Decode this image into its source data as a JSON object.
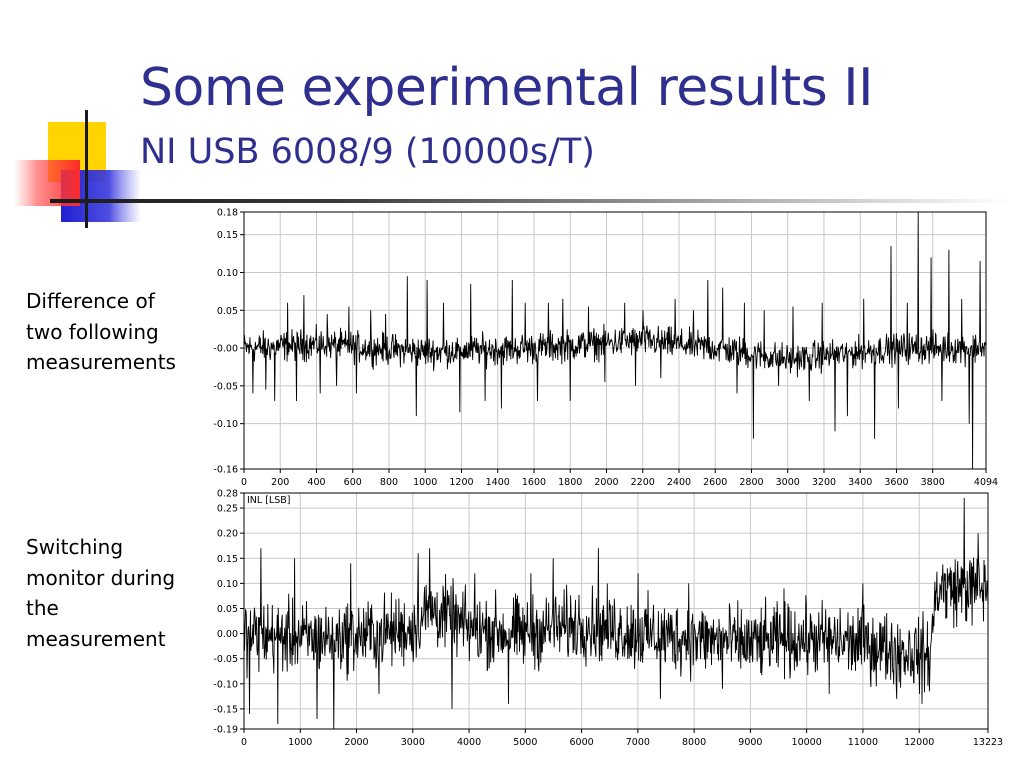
{
  "slide": {
    "title": "Some experimental results II",
    "subtitle": "NI USB 6008/9 (10000s/T)",
    "caption_top": [
      "Difference of",
      "two following",
      "measurements"
    ],
    "caption_bottom": [
      "Switching",
      "monitor during",
      "the",
      "measurement"
    ]
  },
  "colors": {
    "title": "#2f2f8f",
    "deco_yellow": "#ffd400",
    "deco_red": "#ff3b3b",
    "deco_blue": "#2b2bd9",
    "trace": "#000000",
    "grid": "#c8c8c8"
  },
  "chart_data": [
    {
      "type": "line",
      "title": "",
      "xlabel": "",
      "ylabel": "",
      "xlim": [
        0,
        4094
      ],
      "ylim": [
        -0.16,
        0.18
      ],
      "x_ticks": [
        0,
        200,
        400,
        600,
        800,
        1000,
        1200,
        1400,
        1600,
        1800,
        2000,
        2200,
        2400,
        2600,
        2800,
        3000,
        3200,
        3400,
        3600,
        3800,
        4094
      ],
      "x_tick_labels": [
        "0",
        "200",
        "400",
        "600",
        "800",
        "1000",
        "1200",
        "1400",
        "1600",
        "1800",
        "2000",
        "2200",
        "2400",
        "2600",
        "2800",
        "3000",
        "3200",
        "3400",
        "3600",
        "3800",
        "4094"
      ],
      "y_ticks": [
        -0.16,
        -0.1,
        -0.05,
        0.0,
        0.05,
        0.1,
        0.15,
        0.18
      ],
      "y_tick_labels": [
        "-0.16",
        "-0.10",
        "-0.05",
        "-0.00",
        "0.05",
        "0.10",
        "0.15",
        "0.18"
      ],
      "grid": true,
      "legend": "none",
      "series": [
        {
          "noise_amplitude": 0.02,
          "baseline": [
            [
              0,
              0.0
            ],
            [
              400,
              0.005
            ],
            [
              1000,
              -0.005
            ],
            [
              1600,
              0.0
            ],
            [
              2200,
              0.01
            ],
            [
              2600,
              0.0
            ],
            [
              3000,
              -0.015
            ],
            [
              3600,
              0.0
            ],
            [
              4094,
              0.0
            ]
          ],
          "spikes": [
            [
              50,
              -0.06
            ],
            [
              120,
              -0.055
            ],
            [
              170,
              -0.07
            ],
            [
              240,
              0.06
            ],
            [
              290,
              -0.07
            ],
            [
              330,
              0.07
            ],
            [
              420,
              -0.06
            ],
            [
              460,
              0.045
            ],
            [
              510,
              -0.05
            ],
            [
              580,
              0.055
            ],
            [
              620,
              -0.06
            ],
            [
              700,
              0.05
            ],
            [
              780,
              0.045
            ],
            [
              900,
              0.095
            ],
            [
              950,
              -0.09
            ],
            [
              1010,
              0.09
            ],
            [
              1100,
              0.06
            ],
            [
              1190,
              -0.085
            ],
            [
              1250,
              0.085
            ],
            [
              1330,
              -0.07
            ],
            [
              1420,
              -0.08
            ],
            [
              1480,
              0.09
            ],
            [
              1550,
              0.06
            ],
            [
              1620,
              -0.07
            ],
            [
              1680,
              0.06
            ],
            [
              1760,
              0.065
            ],
            [
              1800,
              -0.07
            ],
            [
              1900,
              0.055
            ],
            [
              1990,
              -0.045
            ],
            [
              2100,
              0.06
            ],
            [
              2160,
              -0.05
            ],
            [
              2200,
              0.05
            ],
            [
              2300,
              -0.04
            ],
            [
              2380,
              0.065
            ],
            [
              2480,
              0.05
            ],
            [
              2560,
              0.09
            ],
            [
              2640,
              0.08
            ],
            [
              2720,
              -0.06
            ],
            [
              2760,
              0.06
            ],
            [
              2810,
              -0.12
            ],
            [
              2870,
              0.05
            ],
            [
              2950,
              -0.05
            ],
            [
              3030,
              0.055
            ],
            [
              3120,
              -0.07
            ],
            [
              3190,
              0.06
            ],
            [
              3260,
              -0.11
            ],
            [
              3330,
              -0.09
            ],
            [
              3420,
              0.065
            ],
            [
              3480,
              -0.12
            ],
            [
              3570,
              0.135
            ],
            [
              3610,
              -0.08
            ],
            [
              3660,
              0.06
            ],
            [
              3720,
              0.18
            ],
            [
              3790,
              0.12
            ],
            [
              3850,
              -0.07
            ],
            [
              3890,
              0.13
            ],
            [
              3960,
              0.065
            ],
            [
              4000,
              -0.1
            ],
            [
              4020,
              -0.16
            ],
            [
              4060,
              0.115
            ]
          ]
        }
      ]
    },
    {
      "type": "line",
      "title": "",
      "xlabel": "",
      "ylabel": "",
      "annotation": "INL  [LSB]",
      "xlim": [
        0,
        13223
      ],
      "ylim": [
        -0.19,
        0.28
      ],
      "x_ticks": [
        0,
        1000,
        2000,
        3000,
        4000,
        5000,
        6000,
        7000,
        8000,
        9000,
        10000,
        11000,
        12000,
        13223
      ],
      "x_tick_labels": [
        "0",
        "1000",
        "2000",
        "3000",
        "4000",
        "5000",
        "6000",
        "7000",
        "8000",
        "9000",
        "10000",
        "11000",
        "12000",
        "13223"
      ],
      "y_ticks": [
        -0.19,
        -0.15,
        -0.1,
        -0.05,
        0.0,
        0.05,
        0.1,
        0.15,
        0.2,
        0.25,
        0.28
      ],
      "y_tick_labels": [
        "-0.19",
        "-0.15",
        "-0.10",
        "-0.05",
        "0.00",
        "0.05",
        "0.10",
        "0.15",
        "0.20",
        "0.25",
        "0.28"
      ],
      "grid": true,
      "legend": "none",
      "series": [
        {
          "noise_amplitude": 0.07,
          "baseline": [
            [
              0,
              0.0
            ],
            [
              1000,
              -0.01
            ],
            [
              2000,
              -0.005
            ],
            [
              3000,
              0.01
            ],
            [
              3300,
              0.05
            ],
            [
              4000,
              0.01
            ],
            [
              5000,
              0.0
            ],
            [
              6000,
              0.02
            ],
            [
              7000,
              0.0
            ],
            [
              8000,
              -0.01
            ],
            [
              9000,
              -0.02
            ],
            [
              10000,
              -0.01
            ],
            [
              11000,
              -0.02
            ],
            [
              12200,
              -0.045
            ],
            [
              12300,
              0.09
            ],
            [
              13223,
              0.09
            ]
          ],
          "spikes": [
            [
              100,
              -0.16
            ],
            [
              300,
              0.17
            ],
            [
              600,
              -0.18
            ],
            [
              900,
              0.15
            ],
            [
              1300,
              -0.17
            ],
            [
              1600,
              -0.19
            ],
            [
              1900,
              0.14
            ],
            [
              2400,
              -0.12
            ],
            [
              3100,
              0.16
            ],
            [
              3300,
              0.17
            ],
            [
              3700,
              -0.15
            ],
            [
              4100,
              0.12
            ],
            [
              4700,
              -0.14
            ],
            [
              5100,
              0.12
            ],
            [
              5500,
              0.15
            ],
            [
              6300,
              0.17
            ],
            [
              7000,
              0.12
            ],
            [
              7400,
              -0.13
            ],
            [
              7900,
              0.1
            ],
            [
              8500,
              -0.11
            ],
            [
              9600,
              0.09
            ],
            [
              10400,
              -0.12
            ],
            [
              11000,
              0.1
            ],
            [
              11600,
              -0.13
            ],
            [
              12050,
              -0.14
            ],
            [
              12800,
              0.27
            ],
            [
              13050,
              0.2
            ]
          ]
        }
      ]
    }
  ]
}
